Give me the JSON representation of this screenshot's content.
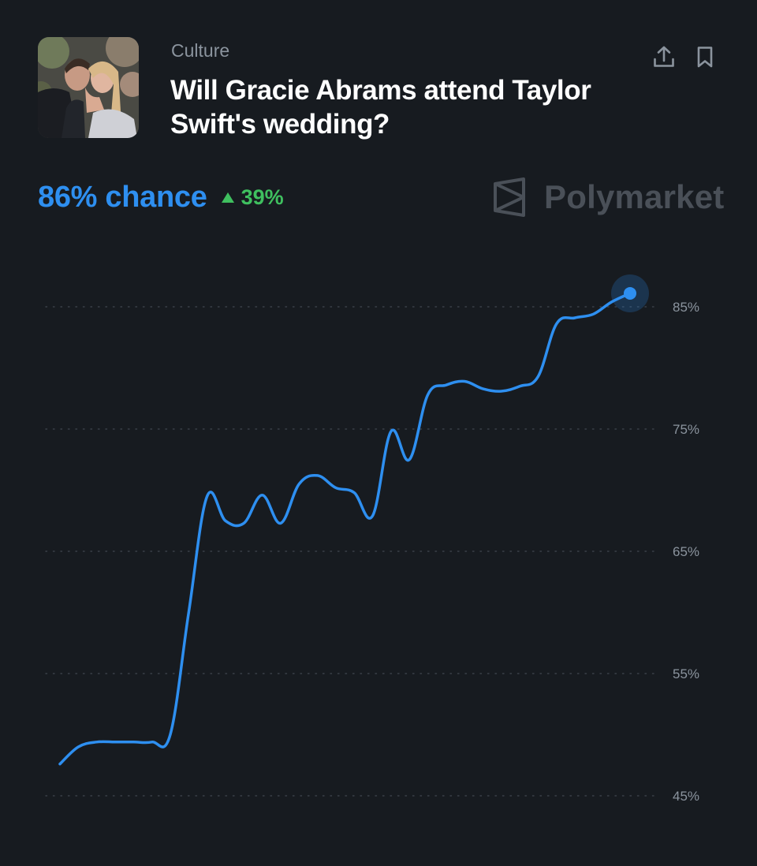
{
  "market": {
    "category": "Culture",
    "title": "Will Gracie Abrams attend Taylor Swift's wedding?",
    "chance_label": "86% chance",
    "change_label": "39%",
    "change_direction": "up",
    "brand": "Polymarket"
  },
  "icons": {
    "share": "share-upload-icon",
    "bookmark": "bookmark-icon",
    "brand_logo": "polymarket-logo-icon",
    "change_arrow": "triangle-up-icon"
  },
  "colors": {
    "background": "#171b20",
    "accent": "#2e8ff0",
    "positive": "#3fc05f",
    "muted_text": "#8b949e",
    "brand_gray": "#4a5058"
  },
  "chart_data": {
    "type": "line",
    "series": [
      {
        "values": [
          47.6,
          49.0,
          49.4,
          49.4,
          49.4,
          49.4,
          50.0,
          60.0,
          69.5,
          67.5,
          67.3,
          69.6,
          67.3,
          70.5,
          71.2,
          70.2,
          69.8,
          67.9,
          74.8,
          72.5,
          77.8,
          78.6,
          78.9,
          78.3,
          78.1,
          78.5,
          79.3,
          83.6,
          84.1,
          84.4,
          85.4,
          86.1
        ]
      }
    ],
    "y_ticks": [
      "45%",
      "55%",
      "65%",
      "75%",
      "85%"
    ],
    "y_tick_values": [
      45,
      55,
      65,
      75,
      85
    ],
    "ylim": [
      45,
      85
    ],
    "grid": "dotted horizontal",
    "y_axis_position": "right",
    "last_point_highlighted": true
  }
}
